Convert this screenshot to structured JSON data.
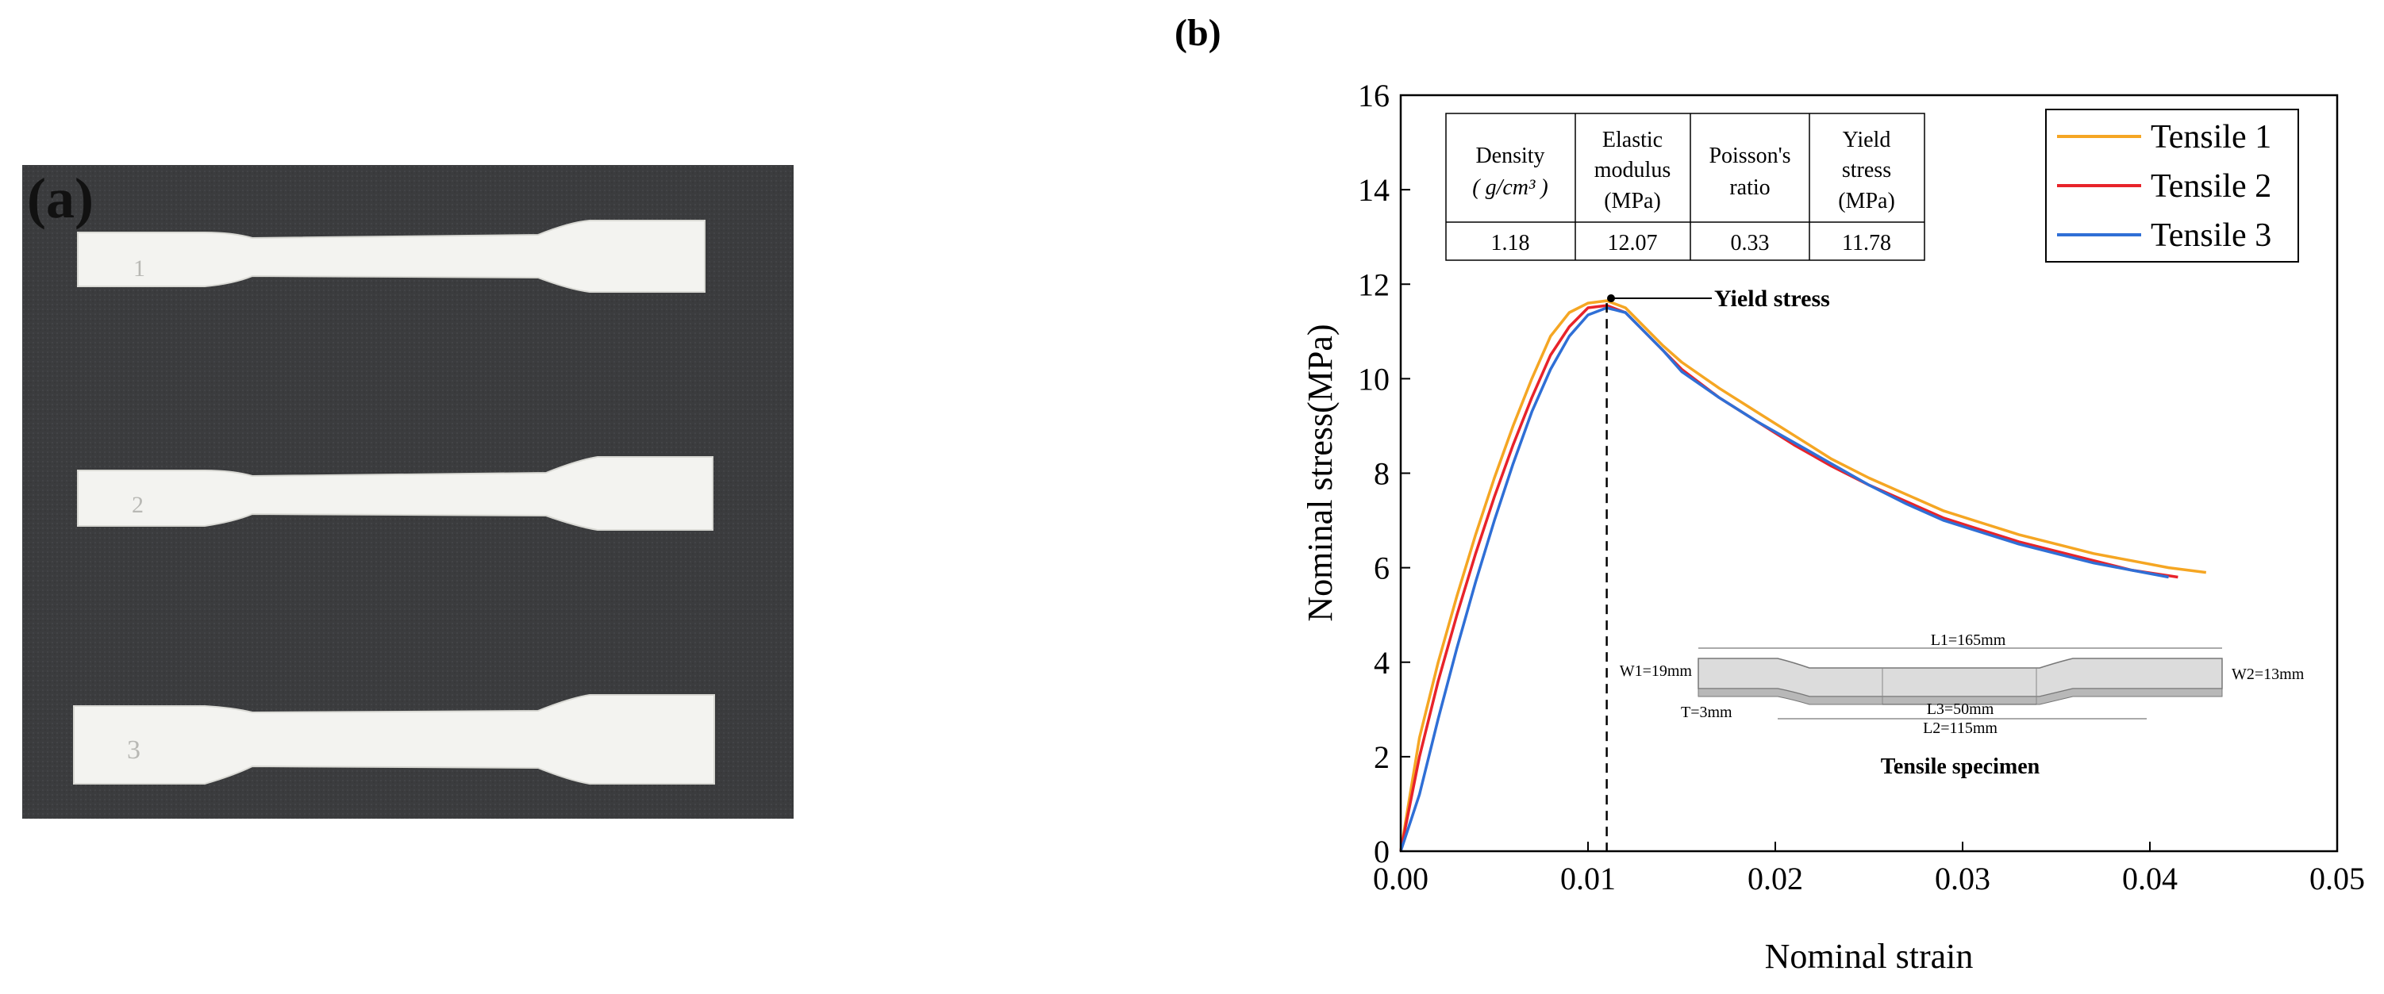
{
  "panel_a": {
    "label": "(a)",
    "specimen_numbers": [
      "1",
      "2",
      "3"
    ]
  },
  "panel_b": {
    "label": "(b)"
  },
  "properties_table": {
    "headers": [
      {
        "lines": [
          "Density",
          "( g/cm³ )"
        ]
      },
      {
        "lines": [
          "Elastic",
          "modulus",
          "(MPa)"
        ]
      },
      {
        "lines": [
          "Poisson's",
          "ratio"
        ]
      },
      {
        "lines": [
          "Yield",
          "stress",
          "(MPa)"
        ]
      }
    ],
    "values": [
      "1.18",
      "12.07",
      "0.33",
      "11.78"
    ]
  },
  "annotation": {
    "yield_label": "Yield stress",
    "yield_strain": 0.011,
    "yield_stress": 11.6
  },
  "specimen_drawing": {
    "caption": "Tensile specimen",
    "dims": {
      "L1": "L1=165mm",
      "L2": "L2=115mm",
      "L3": "L3=50mm",
      "W1": "W1=19mm",
      "W2": "W2=13mm",
      "T": "T=3mm"
    }
  },
  "colors": {
    "tensile1": "#f5a623",
    "tensile2": "#e8232a",
    "tensile3": "#2f6fd6"
  },
  "chart_data": {
    "type": "line",
    "xlabel": "Nominal strain",
    "ylabel": "Nominal stress(MPa)",
    "xlim": [
      0,
      0.05
    ],
    "ylim": [
      0,
      16
    ],
    "xticks": [
      "0.00",
      "0.01",
      "0.02",
      "0.03",
      "0.04",
      "0.05"
    ],
    "yticks": [
      "0",
      "2",
      "4",
      "6",
      "8",
      "10",
      "12",
      "14",
      "16"
    ],
    "legend_position": "top-right",
    "series": [
      {
        "name": "Tensile 1",
        "color": "#f5a623",
        "x": [
          0,
          0.001,
          0.002,
          0.003,
          0.004,
          0.005,
          0.006,
          0.007,
          0.008,
          0.009,
          0.01,
          0.011,
          0.012,
          0.013,
          0.014,
          0.015,
          0.017,
          0.019,
          0.021,
          0.023,
          0.025,
          0.027,
          0.029,
          0.031,
          0.033,
          0.035,
          0.037,
          0.039,
          0.041,
          0.043
        ],
        "y": [
          0,
          2.4,
          4.0,
          5.4,
          6.7,
          7.9,
          9.0,
          10.0,
          10.9,
          11.4,
          11.6,
          11.65,
          11.5,
          11.1,
          10.7,
          10.35,
          9.8,
          9.3,
          8.8,
          8.3,
          7.9,
          7.55,
          7.2,
          6.95,
          6.7,
          6.5,
          6.3,
          6.15,
          6.0,
          5.9
        ]
      },
      {
        "name": "Tensile 2",
        "color": "#e8232a",
        "x": [
          0,
          0.001,
          0.002,
          0.003,
          0.004,
          0.005,
          0.006,
          0.007,
          0.008,
          0.009,
          0.01,
          0.011,
          0.012,
          0.013,
          0.014,
          0.015,
          0.017,
          0.019,
          0.021,
          0.023,
          0.025,
          0.027,
          0.029,
          0.031,
          0.033,
          0.035,
          0.037,
          0.039,
          0.0415
        ],
        "y": [
          0,
          2.0,
          3.6,
          5.0,
          6.3,
          7.5,
          8.6,
          9.6,
          10.5,
          11.1,
          11.5,
          11.55,
          11.4,
          11.0,
          10.6,
          10.2,
          9.6,
          9.1,
          8.6,
          8.15,
          7.75,
          7.4,
          7.05,
          6.8,
          6.55,
          6.35,
          6.15,
          5.95,
          5.8
        ]
      },
      {
        "name": "Tensile 3",
        "color": "#2f6fd6",
        "x": [
          0,
          0.001,
          0.002,
          0.003,
          0.004,
          0.005,
          0.006,
          0.007,
          0.008,
          0.009,
          0.01,
          0.011,
          0.012,
          0.013,
          0.014,
          0.015,
          0.017,
          0.019,
          0.021,
          0.023,
          0.025,
          0.027,
          0.029,
          0.031,
          0.033,
          0.035,
          0.037,
          0.039,
          0.041
        ],
        "y": [
          0,
          1.2,
          2.8,
          4.3,
          5.7,
          7.0,
          8.2,
          9.3,
          10.2,
          10.9,
          11.35,
          11.5,
          11.4,
          11.0,
          10.6,
          10.15,
          9.6,
          9.1,
          8.65,
          8.2,
          7.75,
          7.35,
          7.0,
          6.75,
          6.5,
          6.3,
          6.1,
          5.95,
          5.8
        ]
      }
    ]
  }
}
